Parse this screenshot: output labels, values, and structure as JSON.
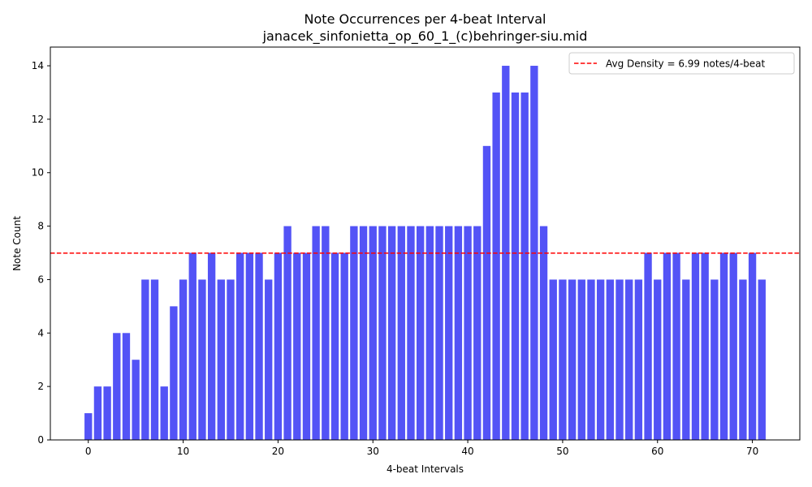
{
  "chart_data": {
    "type": "bar",
    "title": "Note Occurrences per 4-beat Interval",
    "subtitle": "janacek_sinfonietta_op_60_1_(c)behringer-siu.mid",
    "xlabel": "4-beat Intervals",
    "ylabel": "Note Count",
    "xlim": [
      -4,
      75
    ],
    "ylim": [
      0,
      14.7
    ],
    "xticks": [
      0,
      10,
      20,
      30,
      40,
      50,
      60,
      70
    ],
    "yticks": [
      0,
      2,
      4,
      6,
      8,
      10,
      12,
      14
    ],
    "bar_color": "#4a4af5",
    "x": [
      0,
      1,
      2,
      3,
      4,
      5,
      6,
      7,
      8,
      9,
      10,
      11,
      12,
      13,
      14,
      15,
      16,
      17,
      18,
      19,
      20,
      21,
      22,
      23,
      24,
      25,
      26,
      27,
      28,
      29,
      30,
      31,
      32,
      33,
      34,
      35,
      36,
      37,
      38,
      39,
      40,
      41,
      42,
      43,
      44,
      45,
      46,
      47,
      48,
      49,
      50,
      51,
      52,
      53,
      54,
      55,
      56,
      57,
      58,
      59,
      60,
      61,
      62,
      63,
      64,
      65,
      66,
      67,
      68,
      69,
      70,
      71
    ],
    "values": [
      1,
      2,
      2,
      4,
      4,
      3,
      6,
      6,
      2,
      5,
      6,
      7,
      6,
      7,
      6,
      6,
      7,
      7,
      7,
      6,
      7,
      8,
      7,
      7,
      8,
      8,
      7,
      7,
      8,
      8,
      8,
      8,
      8,
      8,
      8,
      8,
      8,
      8,
      8,
      8,
      8,
      8,
      11,
      13,
      14,
      13,
      13,
      14,
      8,
      6,
      6,
      6,
      6,
      6,
      6,
      6,
      6,
      6,
      6,
      7,
      6,
      7,
      7,
      6,
      7,
      7,
      6,
      7,
      7,
      6,
      7,
      6
    ],
    "reference_line": {
      "value": 6.99,
      "label": "Avg Density = 6.99 notes/4-beat",
      "color": "#ff0000",
      "style": "dashed"
    },
    "legend_placement": "top-right",
    "grid": false
  }
}
